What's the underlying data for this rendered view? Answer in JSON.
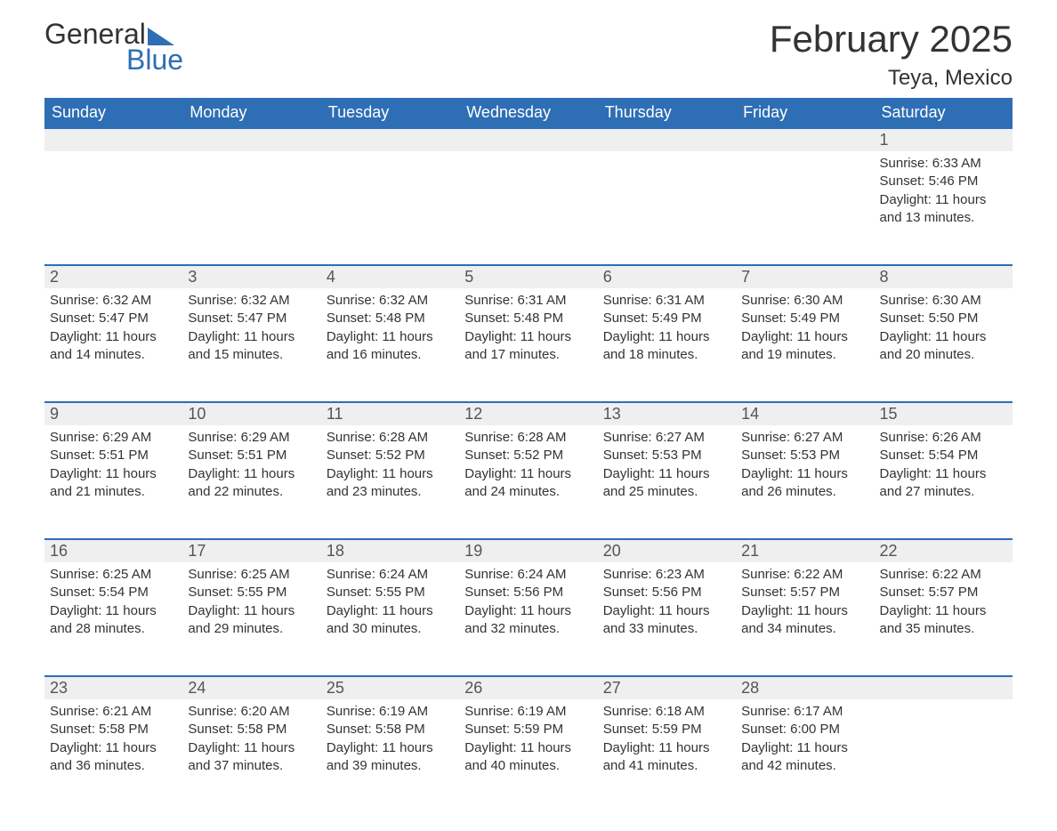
{
  "logo": {
    "word1": "General",
    "word2": "Blue"
  },
  "title": "February 2025",
  "location": "Teya, Mexico",
  "colors": {
    "header_bg": "#2e6eb5",
    "header_text": "#ffffff",
    "daynum_bg": "#efefef",
    "border_top": "#2e6eb5",
    "body_text": "#333333"
  },
  "day_headers": [
    "Sunday",
    "Monday",
    "Tuesday",
    "Wednesday",
    "Thursday",
    "Friday",
    "Saturday"
  ],
  "weeks": [
    [
      null,
      null,
      null,
      null,
      null,
      null,
      {
        "n": "1",
        "sr": "6:33 AM",
        "ss": "5:46 PM",
        "dl": "11 hours and 13 minutes."
      }
    ],
    [
      {
        "n": "2",
        "sr": "6:32 AM",
        "ss": "5:47 PM",
        "dl": "11 hours and 14 minutes."
      },
      {
        "n": "3",
        "sr": "6:32 AM",
        "ss": "5:47 PM",
        "dl": "11 hours and 15 minutes."
      },
      {
        "n": "4",
        "sr": "6:32 AM",
        "ss": "5:48 PM",
        "dl": "11 hours and 16 minutes."
      },
      {
        "n": "5",
        "sr": "6:31 AM",
        "ss": "5:48 PM",
        "dl": "11 hours and 17 minutes."
      },
      {
        "n": "6",
        "sr": "6:31 AM",
        "ss": "5:49 PM",
        "dl": "11 hours and 18 minutes."
      },
      {
        "n": "7",
        "sr": "6:30 AM",
        "ss": "5:49 PM",
        "dl": "11 hours and 19 minutes."
      },
      {
        "n": "8",
        "sr": "6:30 AM",
        "ss": "5:50 PM",
        "dl": "11 hours and 20 minutes."
      }
    ],
    [
      {
        "n": "9",
        "sr": "6:29 AM",
        "ss": "5:51 PM",
        "dl": "11 hours and 21 minutes."
      },
      {
        "n": "10",
        "sr": "6:29 AM",
        "ss": "5:51 PM",
        "dl": "11 hours and 22 minutes."
      },
      {
        "n": "11",
        "sr": "6:28 AM",
        "ss": "5:52 PM",
        "dl": "11 hours and 23 minutes."
      },
      {
        "n": "12",
        "sr": "6:28 AM",
        "ss": "5:52 PM",
        "dl": "11 hours and 24 minutes."
      },
      {
        "n": "13",
        "sr": "6:27 AM",
        "ss": "5:53 PM",
        "dl": "11 hours and 25 minutes."
      },
      {
        "n": "14",
        "sr": "6:27 AM",
        "ss": "5:53 PM",
        "dl": "11 hours and 26 minutes."
      },
      {
        "n": "15",
        "sr": "6:26 AM",
        "ss": "5:54 PM",
        "dl": "11 hours and 27 minutes."
      }
    ],
    [
      {
        "n": "16",
        "sr": "6:25 AM",
        "ss": "5:54 PM",
        "dl": "11 hours and 28 minutes."
      },
      {
        "n": "17",
        "sr": "6:25 AM",
        "ss": "5:55 PM",
        "dl": "11 hours and 29 minutes."
      },
      {
        "n": "18",
        "sr": "6:24 AM",
        "ss": "5:55 PM",
        "dl": "11 hours and 30 minutes."
      },
      {
        "n": "19",
        "sr": "6:24 AM",
        "ss": "5:56 PM",
        "dl": "11 hours and 32 minutes."
      },
      {
        "n": "20",
        "sr": "6:23 AM",
        "ss": "5:56 PM",
        "dl": "11 hours and 33 minutes."
      },
      {
        "n": "21",
        "sr": "6:22 AM",
        "ss": "5:57 PM",
        "dl": "11 hours and 34 minutes."
      },
      {
        "n": "22",
        "sr": "6:22 AM",
        "ss": "5:57 PM",
        "dl": "11 hours and 35 minutes."
      }
    ],
    [
      {
        "n": "23",
        "sr": "6:21 AM",
        "ss": "5:58 PM",
        "dl": "11 hours and 36 minutes."
      },
      {
        "n": "24",
        "sr": "6:20 AM",
        "ss": "5:58 PM",
        "dl": "11 hours and 37 minutes."
      },
      {
        "n": "25",
        "sr": "6:19 AM",
        "ss": "5:58 PM",
        "dl": "11 hours and 39 minutes."
      },
      {
        "n": "26",
        "sr": "6:19 AM",
        "ss": "5:59 PM",
        "dl": "11 hours and 40 minutes."
      },
      {
        "n": "27",
        "sr": "6:18 AM",
        "ss": "5:59 PM",
        "dl": "11 hours and 41 minutes."
      },
      {
        "n": "28",
        "sr": "6:17 AM",
        "ss": "6:00 PM",
        "dl": "11 hours and 42 minutes."
      },
      null
    ]
  ],
  "labels": {
    "sunrise": "Sunrise:",
    "sunset": "Sunset:",
    "daylight": "Daylight:"
  }
}
